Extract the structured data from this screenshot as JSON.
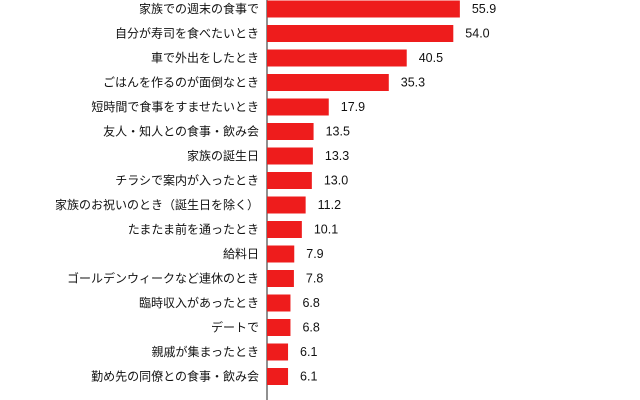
{
  "chart_data": {
    "type": "bar",
    "orientation": "horizontal",
    "title": "",
    "xlabel": "",
    "ylabel": "",
    "xlim": [
      0,
      65
    ],
    "grid": false,
    "legend": "none",
    "bar_color": "#ee1c1c",
    "categories": [
      "家族での週末の食事で",
      "自分が寿司を食べたいとき",
      "車で外出をしたとき",
      "ごはんを作るのが面倒なとき",
      "短時間で食事をすませたいとき",
      "友人・知人との食事・飲み会",
      "家族の誕生日",
      "チラシで案内が入ったとき",
      "家族のお祝いのとき（誕生日を除く）",
      "たまたま前を通ったとき",
      "給料日",
      "ゴールデンウィークなど連休のとき",
      "臨時収入があったとき",
      "デートで",
      "親戚が集まったとき",
      "勤め先の同僚との食事・飲み会"
    ],
    "values": [
      55.9,
      54.0,
      40.5,
      35.3,
      17.9,
      13.5,
      13.3,
      13.0,
      11.2,
      10.1,
      7.9,
      7.8,
      6.8,
      6.8,
      6.1,
      6.1
    ],
    "value_labels": [
      "55.9",
      "54.0",
      "40.5",
      "35.3",
      "17.9",
      "13.5",
      "13.3",
      "13.0",
      "11.2",
      "10.1",
      "7.9",
      "7.8",
      "6.8",
      "6.8",
      "6.1",
      "6.1"
    ]
  }
}
